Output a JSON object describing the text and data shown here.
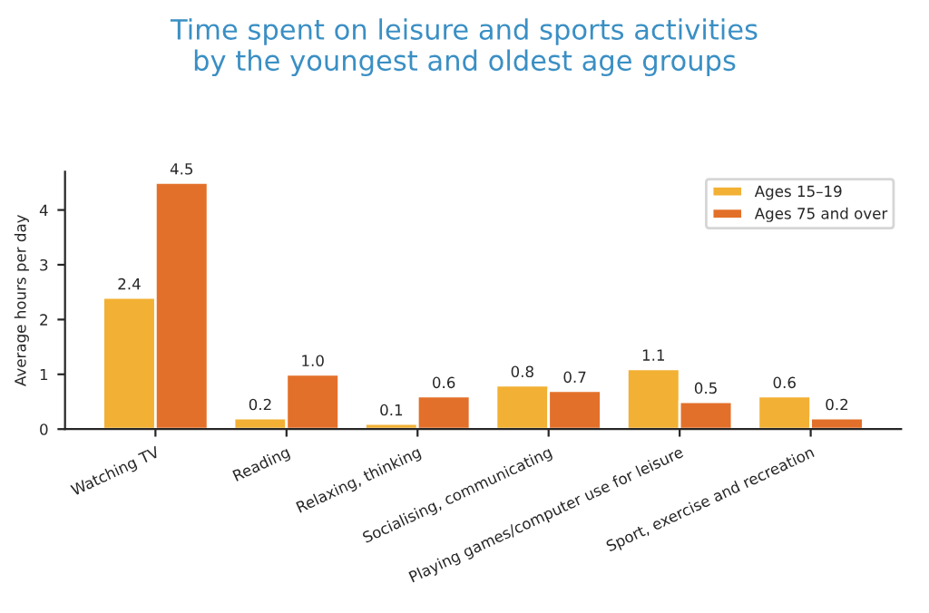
{
  "chart_data": {
    "type": "bar",
    "title": "Time spent on leisure and sports activities\nby the youngest and oldest age groups",
    "ylabel": "Average hours per day",
    "categories": [
      "Watching TV",
      "Reading",
      "Relaxing, thinking",
      "Socialising, communicating",
      "Playing games/computer use for leisure",
      "Sport, exercise and recreation"
    ],
    "series": [
      {
        "name": "Ages 15–19",
        "color": "#f2b134",
        "values": [
          2.4,
          0.2,
          0.1,
          0.8,
          1.1,
          0.6
        ],
        "value_labels": [
          "2.4",
          "0.2",
          "0.1",
          "0.8",
          "1.1",
          "0.6"
        ]
      },
      {
        "name": "Ages 75 and over",
        "color": "#e3702a",
        "values": [
          4.5,
          1.0,
          0.6,
          0.7,
          0.5,
          0.2
        ],
        "value_labels": [
          "4.5",
          "1.0",
          "0.6",
          "0.7",
          "0.5",
          "0.2"
        ]
      }
    ],
    "ylim": [
      0,
      4.7
    ],
    "yticks": [
      0,
      1,
      2,
      3,
      4
    ],
    "legend": "top right",
    "grid": false
  }
}
